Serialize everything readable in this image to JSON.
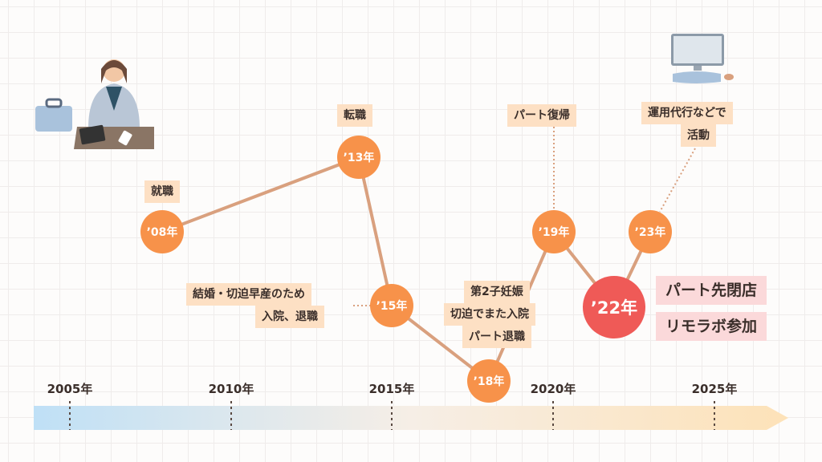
{
  "colors": {
    "node": "#f7924a",
    "highlight": "#ef5a57",
    "label_bg": "#fde0c4",
    "pink_bg": "#fbd9da",
    "line": "#d9a07e"
  },
  "axis": {
    "years": [
      "2005年",
      "2010年",
      "2015年",
      "2020年",
      "2025年"
    ]
  },
  "nodes": [
    {
      "label": "’08年",
      "event": [
        "就職"
      ]
    },
    {
      "label": "’13年",
      "event": [
        "転職"
      ]
    },
    {
      "label": "’15年",
      "event": [
        "結婚・切迫早産のため",
        "入院、退職"
      ]
    },
    {
      "label": "’18年",
      "event": [
        "第2子妊娠",
        "切迫でまた入院",
        "パート退職"
      ]
    },
    {
      "label": "’19年",
      "event": [
        "パート復帰"
      ]
    },
    {
      "label": "’22年",
      "event": [
        "パート先閉店",
        "リモラボ参加"
      ]
    },
    {
      "label": "’23年",
      "event": [
        "運用代行などで",
        "活動"
      ]
    }
  ],
  "illustrations": [
    "woman-at-desk",
    "desktop-computer"
  ]
}
